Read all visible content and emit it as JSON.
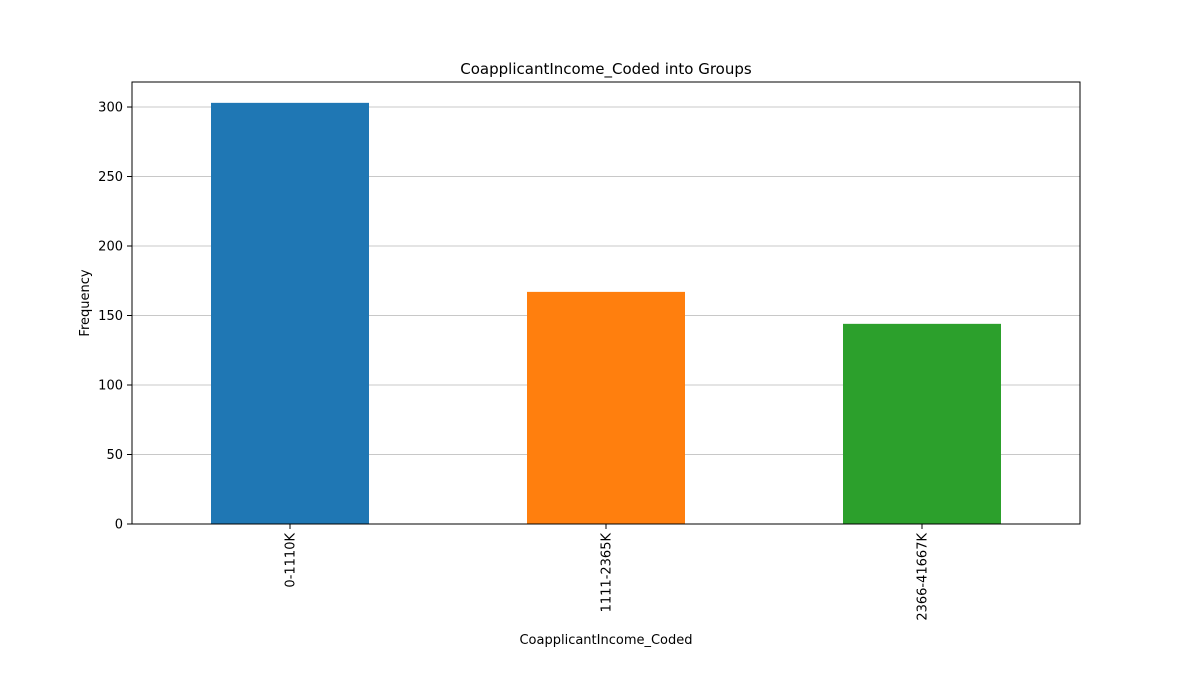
{
  "chart_data": {
    "type": "bar",
    "title": "CoapplicantIncome_Coded into Groups",
    "xlabel": "CoapplicantIncome_Coded",
    "ylabel": "Frequency",
    "categories": [
      "0-1110K",
      "1111-2365K",
      "2366-41667K"
    ],
    "values": [
      303,
      167,
      144
    ],
    "colors": [
      "#1f77b4",
      "#ff7f0e",
      "#2ca02c"
    ],
    "ylim": [
      0,
      318
    ],
    "yticks": [
      0,
      50,
      100,
      150,
      200,
      250,
      300
    ],
    "grid": "y",
    "legend": "none"
  }
}
